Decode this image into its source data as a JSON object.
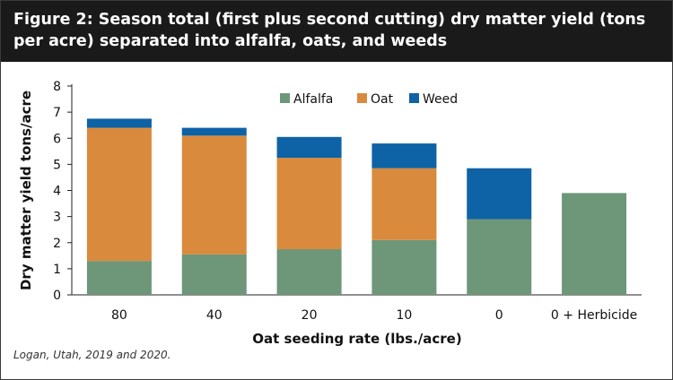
{
  "header": {
    "title": "Figure 2: Season total (first plus second cutting) dry matter yield (tons per acre) separated into alfalfa, oats, and weeds"
  },
  "footnote": "Logan, Utah, 2019 and 2020.",
  "chart_data": {
    "type": "bar",
    "stacked": true,
    "categories": [
      "80",
      "40",
      "20",
      "10",
      "0",
      "0 + Herbicide"
    ],
    "series": [
      {
        "name": "Alfalfa",
        "color": "#6e9679",
        "values": [
          1.3,
          1.55,
          1.75,
          2.1,
          2.9,
          3.9
        ]
      },
      {
        "name": "Oat",
        "color": "#d98a3d",
        "values": [
          5.1,
          4.55,
          3.5,
          2.75,
          0,
          0
        ]
      },
      {
        "name": "Weed",
        "color": "#0e62a6",
        "values": [
          0.35,
          0.3,
          0.8,
          0.95,
          1.95,
          0
        ]
      }
    ],
    "xlabel": "Oat seeding rate (lbs./acre)",
    "ylabel": "Dry matter yield tons/acre",
    "ylim": [
      0,
      8
    ],
    "yticks": [
      0,
      1,
      2,
      3,
      4,
      5,
      6,
      7,
      8
    ],
    "grid": false,
    "legend": "top-center"
  }
}
